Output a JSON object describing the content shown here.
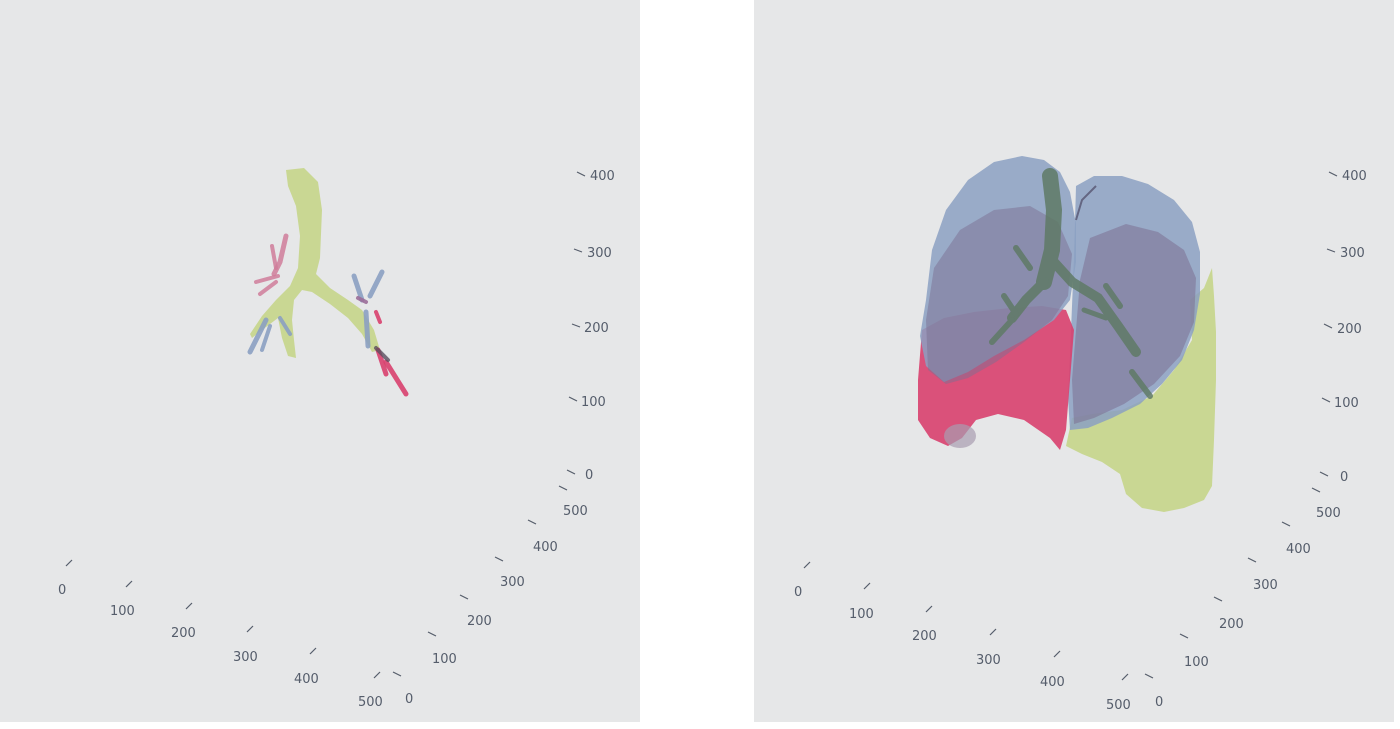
{
  "panels": [
    {
      "id": "left",
      "vertical_ticks": [
        "400",
        "300",
        "200",
        "100",
        "0"
      ],
      "depth_ticks": [
        "500",
        "400",
        "300",
        "200",
        "100",
        "0"
      ],
      "horizontal_ticks": [
        "0",
        "100",
        "200",
        "300",
        "400",
        "500"
      ],
      "structures": [
        "trachea-and-bronchi",
        "right-bronchial-branches",
        "left-bronchial-branches"
      ]
    },
    {
      "id": "right",
      "vertical_ticks": [
        "400",
        "300",
        "200",
        "100",
        "0"
      ],
      "depth_ticks": [
        "500",
        "400",
        "300",
        "200",
        "100",
        "0"
      ],
      "horizontal_ticks": [
        "0",
        "100",
        "200",
        "300",
        "400",
        "500"
      ],
      "structures": [
        "upper-lobe",
        "lower-lobe",
        "middle-lobe",
        "airway-tree"
      ]
    }
  ],
  "colors": {
    "background": "#e6e7e8",
    "axis_text": "#555d6b",
    "airway": "#c5d58a",
    "blue_structure": "#8ba0c2",
    "red_structure": "#d8406e",
    "purple_overlap": "#7f7395",
    "airway_dark": "#5f7a66"
  }
}
